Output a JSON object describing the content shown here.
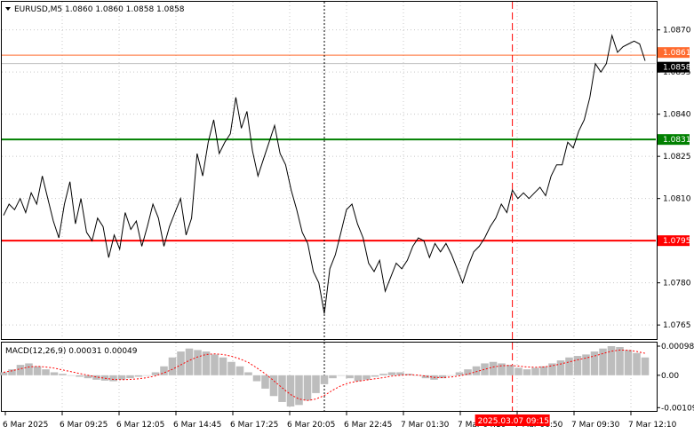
{
  "header": {
    "symbol_line": "EURUSD,M5  1.0860 1.0860 1.0858 1.0858"
  },
  "macd_header": "MACD(12,26,9) 0.00031 0.00049",
  "colors": {
    "price_line": "#000000",
    "level_red": "#ff0000",
    "level_green": "#008000",
    "ask_line": "#ff6a2e",
    "bid_line": "#c0c0c0",
    "macd_hist": "#bdbdbd",
    "macd_signal": "#ff0000",
    "grid": "#c8c8c8"
  },
  "chart_data": [
    {
      "type": "line",
      "name": "price",
      "x_labels": [
        "6 Mar 2025",
        "6 Mar 09:25",
        "6 Mar 12:05",
        "6 Mar 14:45",
        "6 Mar 17:25",
        "6 Mar 20:05",
        "6 Mar 22:45",
        "7 Mar 01:30",
        "7 Mar 04:10",
        "7 Mar 06:50",
        "7 Mar 09:30",
        "7 Mar 12:10"
      ],
      "y_ticks": [
        "1.0870",
        "1.0855",
        "1.0840",
        "1.0825",
        "1.0810",
        "1.0780",
        "1.0765"
      ],
      "ylim": [
        1.076,
        1.088
      ],
      "values": [
        1.0804,
        1.0808,
        1.0806,
        1.081,
        1.0805,
        1.0812,
        1.0808,
        1.0818,
        1.081,
        1.0802,
        1.0796,
        1.0808,
        1.0816,
        1.0801,
        1.081,
        1.0798,
        1.0795,
        1.0803,
        1.08,
        1.0789,
        1.0797,
        1.0792,
        1.0805,
        1.0799,
        1.0802,
        1.0793,
        1.08,
        1.0808,
        1.0803,
        1.0793,
        1.08,
        1.0805,
        1.081,
        1.0797,
        1.0803,
        1.0826,
        1.0818,
        1.083,
        1.0838,
        1.0826,
        1.083,
        1.0833,
        1.0846,
        1.0835,
        1.0841,
        1.0827,
        1.0818,
        1.0824,
        1.083,
        1.0836,
        1.0826,
        1.0822,
        1.0813,
        1.0806,
        1.0798,
        1.0794,
        1.0784,
        1.078,
        1.0769,
        1.0785,
        1.079,
        1.0798,
        1.0806,
        1.0808,
        1.0801,
        1.0796,
        1.0787,
        1.0784,
        1.0788,
        1.0777,
        1.0782,
        1.0787,
        1.0785,
        1.0788,
        1.0793,
        1.0796,
        1.0795,
        1.0789,
        1.0794,
        1.0791,
        1.0794,
        1.079,
        1.0785,
        1.078,
        1.0786,
        1.0791,
        1.0793,
        1.0796,
        1.08,
        1.0803,
        1.0808,
        1.0805,
        1.0813,
        1.081,
        1.0812,
        1.081,
        1.0812,
        1.0814,
        1.0811,
        1.0818,
        1.0822,
        1.0822,
        1.083,
        1.0828,
        1.0834,
        1.0838,
        1.0846,
        1.0858,
        1.0855,
        1.0858,
        1.0868,
        1.0862,
        1.0864,
        1.0865,
        1.0866,
        1.0865,
        1.0859
      ],
      "series": [
        {
          "name": "1.0795",
          "type": "hline",
          "value": 1.0795
        },
        {
          "name": "1.0831",
          "type": "hline",
          "value": 1.0831
        },
        {
          "name": "1.0861",
          "type": "hline",
          "value": 1.0861
        },
        {
          "name": "1.0858",
          "type": "hline",
          "value": 1.0858
        }
      ],
      "markers": [
        {
          "type": "vline",
          "x_index": 58,
          "style": "dotted"
        },
        {
          "type": "vline",
          "x_index": 92,
          "style": "dashed",
          "label": "2025.03.07 09:15"
        }
      ]
    },
    {
      "type": "bar",
      "name": "MACD(12,26,9)",
      "y_ticks": [
        "0.00098",
        "0.00",
        "-0.00109"
      ],
      "ylim": [
        -0.0012,
        0.0011
      ],
      "values": [
        0.0001,
        0.0002,
        0.00035,
        0.0004,
        0.0003,
        0.0002,
        0.0001,
        5e-05,
        0.0,
        -5e-05,
        -0.0001,
        -0.00015,
        -0.00018,
        -0.0002,
        -0.00015,
        -0.0001,
        -5e-05,
        0.0,
        0.0001,
        0.0003,
        0.0006,
        0.0008,
        0.0009,
        0.00085,
        0.0008,
        0.0007,
        0.0006,
        0.00045,
        0.0003,
        0.0001,
        -0.0002,
        -0.00045,
        -0.0007,
        -0.0009,
        -0.00105,
        -0.001,
        -0.00085,
        -0.0006,
        -0.0003,
        -0.0001,
        0.0,
        -0.0001,
        -0.0002,
        -0.00015,
        -5e-05,
        5e-05,
        0.0001,
        0.0001,
        5e-05,
        0.0,
        -0.0001,
        -0.00015,
        -0.0001,
        0.0,
        0.0001,
        0.0002,
        0.0003,
        0.0004,
        0.00045,
        0.0004,
        0.00035,
        0.00025,
        0.0002,
        0.00025,
        0.0003,
        0.0004,
        0.0005,
        0.0006,
        0.00065,
        0.0007,
        0.0008,
        0.0009,
        0.00098,
        0.00095,
        0.00085,
        0.00075,
        0.0006
      ],
      "series": [
        {
          "name": "signal",
          "values": [
            0.0001,
            0.00015,
            0.00022,
            0.00028,
            0.0003,
            0.00028,
            0.00024,
            0.00018,
            0.00012,
            6e-05,
            0.0,
            -6e-05,
            -0.0001,
            -0.00014,
            -0.00015,
            -0.00014,
            -0.00012,
            -8e-05,
            -2e-05,
            8e-05,
            0.0002,
            0.00035,
            0.0005,
            0.00062,
            0.0007,
            0.00072,
            0.0007,
            0.00064,
            0.00055,
            0.00043,
            0.00025,
            5e-05,
            -0.00018,
            -0.00042,
            -0.00065,
            -0.0008,
            -0.00085,
            -0.0008,
            -0.00068,
            -0.0005,
            -0.00035,
            -0.00025,
            -0.0002,
            -0.00016,
            -0.00012,
            -8e-05,
            -3e-05,
            0.0,
            2e-05,
            1e-05,
            -3e-05,
            -7e-05,
            -8e-05,
            -6e-05,
            -2e-05,
            4e-05,
            0.00012,
            0.0002,
            0.00028,
            0.00032,
            0.00033,
            0.00031,
            0.00028,
            0.00027,
            0.00028,
            0.00032,
            0.00038,
            0.00045,
            0.00052,
            0.00058,
            0.00065,
            0.00073,
            0.00081,
            0.00085,
            0.00084,
            0.0008,
            0.00074
          ]
        }
      ]
    }
  ]
}
